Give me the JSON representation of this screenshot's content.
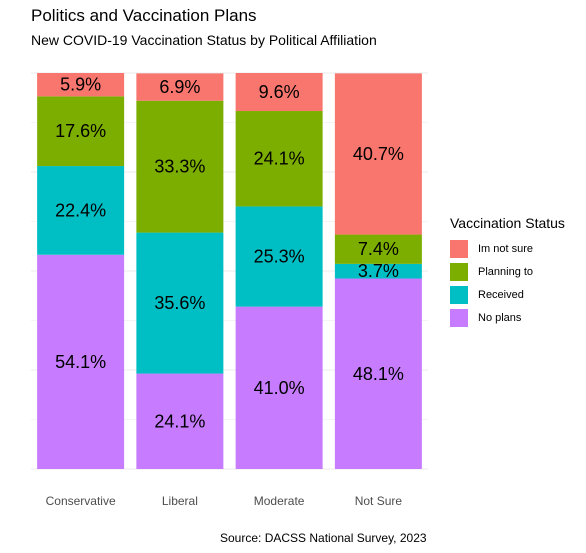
{
  "header": {
    "title": "Politics and Vaccination Plans",
    "subtitle": "New COVID-19 Vaccination Status by Political Affiliation"
  },
  "caption": "Source: DACSS National Survey, 2023",
  "legend": {
    "title": "Vaccination Status",
    "items": [
      {
        "label": "Im not sure",
        "color": "#F8766D"
      },
      {
        "label": "Planning to",
        "color": "#7CAE00"
      },
      {
        "label": "Received",
        "color": "#00BFC4"
      },
      {
        "label": "No plans",
        "color": "#C77CFF"
      }
    ]
  },
  "chart_data": {
    "type": "bar",
    "stacked": true,
    "normalized": true,
    "categories": [
      "Conservative",
      "Liberal",
      "Moderate",
      "Not Sure"
    ],
    "series": [
      {
        "name": "No plans",
        "color": "#C77CFF",
        "values": [
          54.1,
          24.1,
          41.0,
          48.1
        ],
        "labels": [
          "54.1%",
          "24.1%",
          "41.0%",
          "48.1%"
        ]
      },
      {
        "name": "Received",
        "color": "#00BFC4",
        "values": [
          22.4,
          35.6,
          25.3,
          3.7
        ],
        "labels": [
          "22.4%",
          "35.6%",
          "25.3%",
          "3.7%"
        ]
      },
      {
        "name": "Planning to",
        "color": "#7CAE00",
        "values": [
          17.6,
          33.3,
          24.1,
          7.4
        ],
        "labels": [
          "17.6%",
          "33.3%",
          "24.1%",
          "7.4%"
        ]
      },
      {
        "name": "Im not sure",
        "color": "#F8766D",
        "values": [
          5.9,
          6.9,
          9.6,
          40.7
        ],
        "labels": [
          "5.9%",
          "6.9%",
          "9.6%",
          "40.7%"
        ]
      }
    ],
    "ylim": [
      0,
      100
    ],
    "y_axis_visible": false,
    "grid": true,
    "legend_position": "right"
  }
}
